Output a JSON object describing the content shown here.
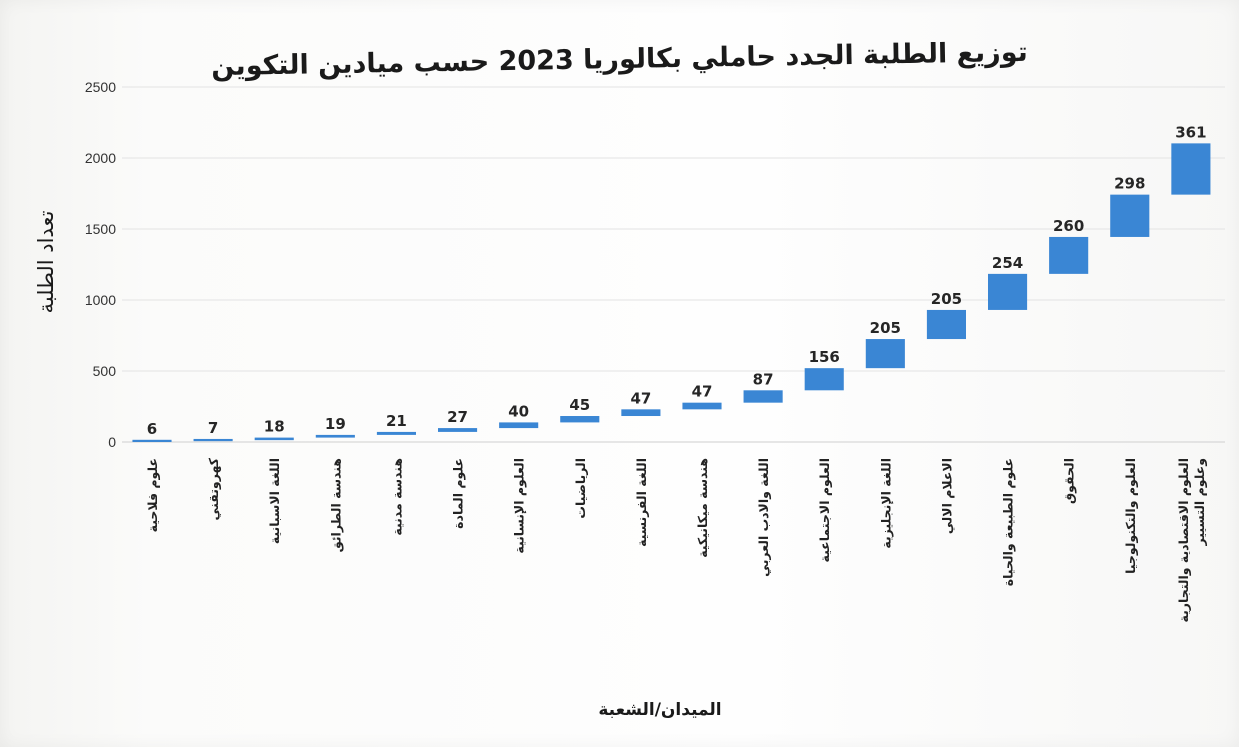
{
  "chart_data": {
    "type": "bar",
    "subtype": "waterfall",
    "title": "توزيع الطلبة الجدد حاملي بكالوريا 2023 حسب ميادين التكوين",
    "xlabel": "الميدان/الشعبة",
    "ylabel": "تعداد الطلبة",
    "ylim": [
      0,
      2500
    ],
    "yticks": [
      "0",
      "500",
      "1000",
      "1500",
      "2000",
      "2500"
    ],
    "grid": true,
    "legend": "none",
    "bar_color": "#3a86d4",
    "categories": [
      [
        "علوم فلاحية"
      ],
      [
        "كهروتقني"
      ],
      [
        "اللغة الاسبانية"
      ],
      [
        "هندسة الطرائق"
      ],
      [
        "هندسة مدنية"
      ],
      [
        "علوم المادة"
      ],
      [
        "العلوم الإنسانية"
      ],
      [
        "الرياضيات"
      ],
      [
        "اللغة الفرنسية"
      ],
      [
        "هندسة ميكانيكية"
      ],
      [
        "اللغة والادب العربي"
      ],
      [
        "العلوم الاجتماعية"
      ],
      [
        "اللغة الإنجليزية"
      ],
      [
        "الاعلام الالي"
      ],
      [
        "علوم الطبيعة والحياة"
      ],
      [
        "الحقوق"
      ],
      [
        "العلوم والتكنولوجيا"
      ],
      [
        "العلوم الاقتصادية والتجارية",
        "وعلوم التسيير"
      ]
    ],
    "values": [
      6,
      7,
      18,
      19,
      21,
      27,
      40,
      45,
      47,
      47,
      87,
      156,
      205,
      205,
      254,
      260,
      298,
      361
    ],
    "data_labels": [
      "6",
      "7",
      "18",
      "19",
      "21",
      "27",
      "40",
      "45",
      "47",
      "47",
      "87",
      "156",
      "205",
      "205",
      "254",
      "260",
      "298",
      "361"
    ]
  }
}
